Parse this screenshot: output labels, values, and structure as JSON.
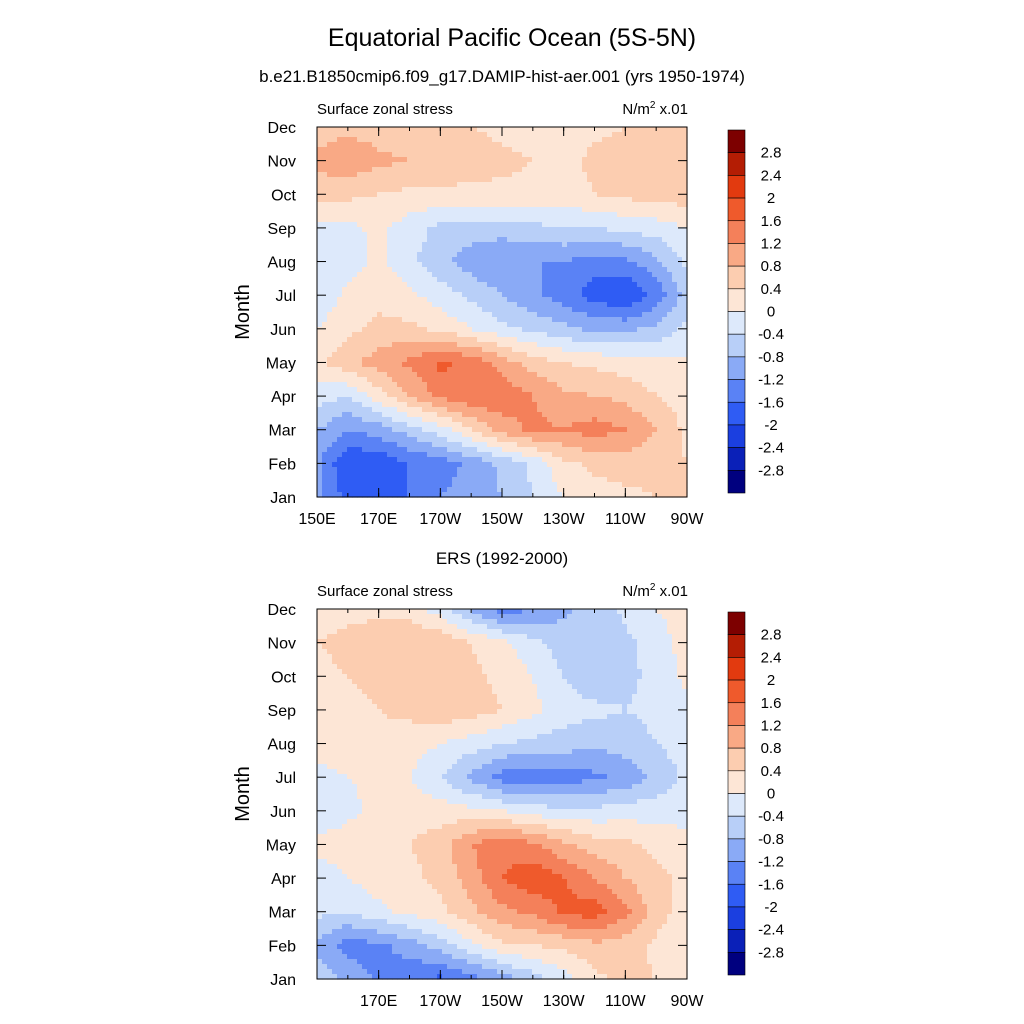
{
  "figure": {
    "title": "Equatorial Pacific Ocean (5S-5N)",
    "colors": {
      "levels": [
        -2.8,
        -2.4,
        -2,
        -1.6,
        -1.2,
        -0.8,
        -0.4,
        0,
        0.4,
        0.8,
        1.2,
        1.6,
        2,
        2.4,
        2.8
      ],
      "fills": [
        "#00007f",
        "#0a20b8",
        "#1b3fe0",
        "#2f5cf4",
        "#5a82f5",
        "#8aaaf6",
        "#b8cff8",
        "#dde9fb",
        "#fde6d6",
        "#fccdb0",
        "#f9a985",
        "#f4805a",
        "#ef5a2c",
        "#e23a0f",
        "#b41d04",
        "#7d0000"
      ]
    }
  },
  "chart_data": [
    {
      "type": "heatmap",
      "panel_title": "b.e21.B1850cmip6.f09_g17.DAMIP-hist-aer.001 (yrs 1950-1974)",
      "left_label": "Surface zonal stress",
      "right_label_main": "N/m",
      "right_label_sup": "2",
      "right_label_suffix": " x.01",
      "ylabel": "Month",
      "x_ticks": [
        "150E",
        "170E",
        "170W",
        "150W",
        "130W",
        "110W",
        "90W"
      ],
      "x_tick_lon": [
        150,
        170,
        190,
        210,
        230,
        250,
        270
      ],
      "xlim": [
        150,
        270
      ],
      "y_ticks": [
        "Jan",
        "Feb",
        "Mar",
        "Apr",
        "May",
        "Jun",
        "Jul",
        "Aug",
        "Sep",
        "Oct",
        "Nov",
        "Dec"
      ],
      "colorbar_labels": [
        "2.8",
        "2.4",
        "2",
        "1.6",
        "1.2",
        "0.8",
        "0.4",
        "0",
        "-0.4",
        "-0.8",
        "-1.2",
        "-1.6",
        "-2",
        "-2.4",
        "-2.8"
      ],
      "grid_lon": [
        150,
        160,
        170,
        180,
        190,
        200,
        210,
        220,
        230,
        240,
        250,
        260,
        270
      ],
      "values": [
        [
          -1.0,
          -1.8,
          -1.9,
          -1.6,
          -1.2,
          -1.0,
          -0.8,
          -0.4,
          0.0,
          0.2,
          0.3,
          0.4,
          0.4
        ],
        [
          -1.1,
          -2.0,
          -1.9,
          -1.6,
          -1.4,
          -1.1,
          -0.7,
          -0.3,
          0.3,
          0.5,
          0.6,
          0.5,
          0.4
        ],
        [
          -0.8,
          -1.2,
          -1.0,
          -0.6,
          -0.2,
          0.4,
          1.0,
          1.3,
          1.2,
          1.4,
          1.2,
          0.8,
          0.3
        ],
        [
          -0.2,
          -0.4,
          0.2,
          0.8,
          1.3,
          1.5,
          1.5,
          1.2,
          0.9,
          0.8,
          0.7,
          0.4,
          0.2
        ],
        [
          0.3,
          0.7,
          1.0,
          1.3,
          1.7,
          1.5,
          1.0,
          0.6,
          0.4,
          0.3,
          0.2,
          0.1,
          0.1
        ],
        [
          0.0,
          0.3,
          0.5,
          0.5,
          0.3,
          0.0,
          -0.3,
          -0.5,
          -0.7,
          -0.9,
          -0.9,
          -0.7,
          -0.3
        ],
        [
          -0.3,
          0.1,
          0.3,
          0.1,
          -0.2,
          -0.5,
          -0.8,
          -1.1,
          -1.4,
          -1.8,
          -2.0,
          -1.5,
          -0.6
        ],
        [
          -0.4,
          -0.2,
          0.1,
          -0.3,
          -0.7,
          -1.0,
          -1.2,
          -1.2,
          -1.2,
          -1.4,
          -1.3,
          -0.9,
          -0.3
        ],
        [
          -0.2,
          -0.1,
          0.1,
          -0.2,
          -0.5,
          -0.6,
          -0.6,
          -0.5,
          -0.4,
          -0.4,
          -0.3,
          -0.2,
          0.0
        ],
        [
          0.6,
          0.5,
          0.4,
          0.3,
          0.3,
          0.3,
          0.3,
          0.3,
          0.2,
          0.4,
          0.5,
          0.6,
          0.6
        ],
        [
          0.9,
          1.1,
          0.9,
          0.8,
          0.7,
          0.6,
          0.5,
          0.4,
          0.3,
          0.5,
          0.6,
          0.6,
          0.5
        ],
        [
          0.6,
          0.7,
          0.6,
          0.5,
          0.5,
          0.4,
          0.3,
          0.2,
          0.1,
          0.3,
          0.4,
          0.4,
          0.4
        ]
      ]
    },
    {
      "type": "heatmap",
      "panel_title": "ERS (1992-2000)",
      "left_label": "Surface zonal stress",
      "right_label_main": "N/m",
      "right_label_sup": "2",
      "right_label_suffix": " x.01",
      "ylabel": "Month",
      "x_ticks": [
        "170E",
        "170W",
        "150W",
        "130W",
        "110W",
        "90W"
      ],
      "x_tick_lon": [
        170,
        190,
        210,
        230,
        250,
        270
      ],
      "xlim": [
        150,
        270
      ],
      "y_ticks": [
        "Jan",
        "Feb",
        "Mar",
        "Apr",
        "May",
        "Jun",
        "Jul",
        "Aug",
        "Sep",
        "Oct",
        "Nov",
        "Dec"
      ],
      "colorbar_labels": [
        "2.8",
        "2.4",
        "2",
        "1.6",
        "1.2",
        "0.8",
        "0.4",
        "0",
        "-0.4",
        "-0.8",
        "-1.2",
        "-1.6",
        "-2",
        "-2.4",
        "-2.8"
      ],
      "grid_lon": [
        150,
        160,
        170,
        180,
        190,
        200,
        210,
        220,
        230,
        240,
        250,
        260,
        270
      ],
      "values": [
        [
          -0.5,
          -0.9,
          -1.3,
          -1.5,
          -1.7,
          -1.4,
          -1.0,
          -0.6,
          -0.2,
          0.3,
          0.5,
          0.4,
          0.3
        ],
        [
          -0.9,
          -1.4,
          -1.3,
          -1.0,
          -0.6,
          -0.1,
          0.3,
          0.4,
          0.5,
          0.7,
          0.6,
          0.3,
          0.1
        ],
        [
          -0.3,
          -0.4,
          -0.1,
          0.1,
          0.3,
          0.7,
          1.1,
          1.3,
          1.7,
          1.8,
          1.3,
          0.6,
          0.2
        ],
        [
          -0.2,
          0.0,
          0.2,
          0.3,
          0.5,
          1.0,
          1.6,
          1.9,
          1.6,
          1.2,
          0.8,
          0.5,
          0.3
        ],
        [
          0.1,
          0.2,
          0.3,
          0.4,
          0.6,
          1.2,
          1.5,
          1.3,
          0.9,
          0.6,
          0.5,
          0.3,
          0.2
        ],
        [
          -0.3,
          -0.1,
          0.1,
          0.2,
          0.2,
          0.1,
          0.0,
          -0.2,
          -0.3,
          -0.3,
          -0.2,
          -0.2,
          -0.2
        ],
        [
          -0.1,
          0.0,
          0.1,
          0.0,
          -0.4,
          -0.9,
          -1.4,
          -1.5,
          -1.4,
          -1.3,
          -1.1,
          -0.7,
          -0.3
        ],
        [
          0.1,
          0.2,
          0.3,
          0.2,
          0.0,
          -0.2,
          -0.4,
          -0.5,
          -0.6,
          -0.7,
          -0.6,
          -0.4,
          -0.2
        ],
        [
          0.2,
          0.3,
          0.4,
          0.5,
          0.7,
          0.6,
          0.4,
          0.1,
          -0.2,
          -0.3,
          -0.4,
          -0.3,
          -0.1
        ],
        [
          0.3,
          0.4,
          0.5,
          0.5,
          0.6,
          0.5,
          0.3,
          0.0,
          -0.4,
          -0.7,
          -0.5,
          -0.3,
          0.1
        ],
        [
          0.4,
          0.5,
          0.6,
          0.8,
          0.7,
          0.4,
          0.1,
          -0.3,
          -0.6,
          -0.8,
          -0.5,
          -0.2,
          0.2
        ],
        [
          0.2,
          0.3,
          0.3,
          0.2,
          -0.2,
          -0.9,
          -1.4,
          -1.2,
          -0.9,
          -0.6,
          -0.3,
          0.0,
          0.2
        ]
      ]
    }
  ]
}
